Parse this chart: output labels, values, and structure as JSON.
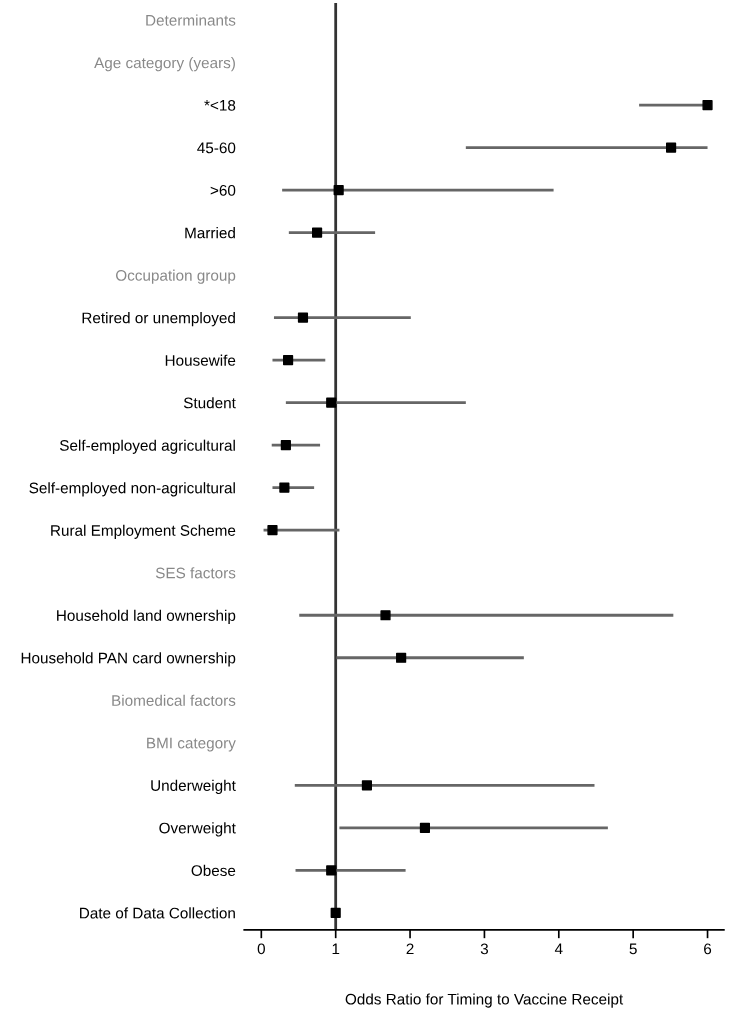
{
  "chart_data": {
    "type": "scatter",
    "orientation": "horizontal",
    "xlabel": "Odds Ratio for Timing to Vaccine Receipt",
    "categories": [
      "Determinants",
      "Age category (years)",
      "*<18",
      "45-60",
      ">60",
      "Married",
      "Occupation group",
      "Retired or unemployed",
      "Housewife",
      "Student",
      "Self-employed agricultural",
      "Self-employed non-agricultural",
      "Rural Employment Scheme",
      "SES factors",
      "Household land ownership",
      "Household PAN card ownership",
      "Biomedical factors",
      "BMI category",
      "Underweight",
      "Overweight",
      "Obese",
      "Date of Data Collection"
    ],
    "color": "#000000",
    "values": [
      null,
      null,
      6.0,
      5.51,
      1.04,
      0.75,
      null,
      0.56,
      0.36,
      0.94,
      0.33,
      0.31,
      0.15,
      null,
      1.67,
      1.88,
      null,
      null,
      1.42,
      2.2,
      0.94,
      1.0
    ],
    "errors": [
      null,
      null,
      [
        5.08,
        6.0
      ],
      [
        2.75,
        6.0
      ],
      [
        0.28,
        3.93
      ],
      [
        0.37,
        1.53
      ],
      null,
      [
        0.17,
        2.01
      ],
      [
        0.15,
        0.86
      ],
      [
        0.33,
        2.75
      ],
      [
        0.14,
        0.79
      ],
      [
        0.15,
        0.71
      ],
      [
        0.03,
        1.05
      ],
      null,
      [
        0.51,
        5.54
      ],
      [
        1.01,
        3.53
      ],
      null,
      null,
      [
        0.45,
        4.48
      ],
      [
        1.05,
        4.66
      ],
      [
        0.46,
        1.94
      ],
      null
    ],
    "xlim": [
      -0.23,
      6.22
    ],
    "xticks": [
      0,
      1,
      2,
      3,
      4,
      5,
      6
    ],
    "ref_lines": [
      {
        "axis": "x",
        "value": 1,
        "color": "#333333"
      }
    ],
    "marker": "square",
    "grid": false
  }
}
